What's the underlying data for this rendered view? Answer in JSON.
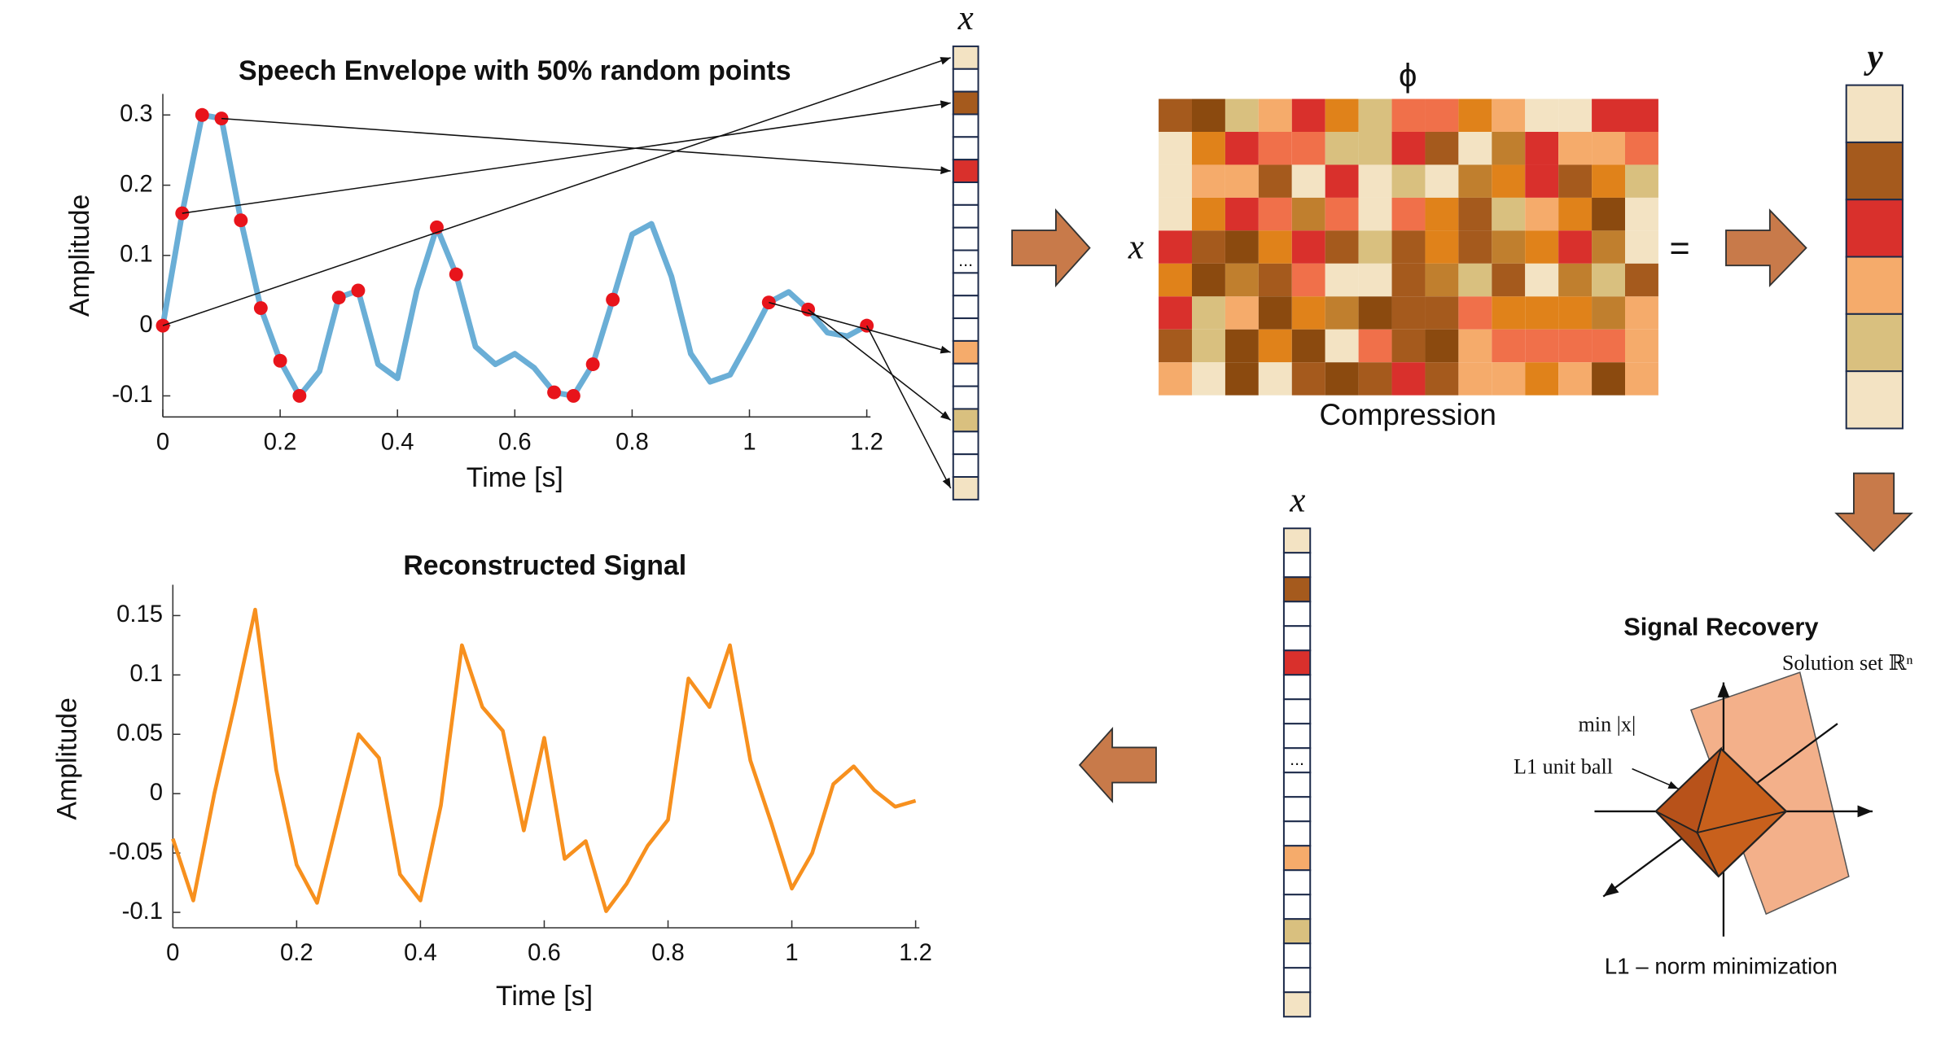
{
  "chart_data": [
    {
      "type": "line",
      "title": "Speech Envelope with 50% random points",
      "x_label": "Time [s]",
      "y_label": "Amplitude",
      "x": [
        0,
        0.033,
        0.067,
        0.1,
        0.133,
        0.167,
        0.2,
        0.233,
        0.267,
        0.3,
        0.333,
        0.367,
        0.4,
        0.433,
        0.467,
        0.5,
        0.533,
        0.567,
        0.6,
        0.633,
        0.667,
        0.7,
        0.733,
        0.767,
        0.8,
        0.833,
        0.867,
        0.9,
        0.933,
        0.967,
        1.0,
        1.033,
        1.067,
        1.1,
        1.133,
        1.167,
        1.2
      ],
      "series": [
        {
          "color": "#6aaed6",
          "values": [
            0,
            0.16,
            0.3,
            0.295,
            0.15,
            0.025,
            -0.05,
            -0.1,
            -0.065,
            0.04,
            0.05,
            -0.055,
            -0.075,
            0.05,
            0.14,
            0.073,
            -0.03,
            -0.055,
            -0.04,
            -0.06,
            -0.095,
            -0.1,
            -0.055,
            0.037,
            0.13,
            0.145,
            0.07,
            -0.04,
            -0.08,
            -0.07,
            -0.02,
            0.033,
            0.048,
            0.023,
            -0.01,
            -0.015,
            0
          ]
        },
        {
          "type": "scatter",
          "color": "#e8141b",
          "x": [
            0,
            0.033,
            0.067,
            0.1,
            0.133,
            0.167,
            0.2,
            0.233,
            0.3,
            0.333,
            0.467,
            0.5,
            0.667,
            0.7,
            0.733,
            0.767,
            1.033,
            1.1,
            1.2
          ],
          "values": [
            0,
            0.16,
            0.3,
            0.295,
            0.15,
            0.025,
            -0.05,
            -0.1,
            0.04,
            0.05,
            0.14,
            0.073,
            -0.095,
            -0.1,
            -0.055,
            0.037,
            0.033,
            0.023,
            0
          ]
        }
      ],
      "xlim": [
        0,
        1.2
      ],
      "ylim": [
        -0.13,
        0.33
      ],
      "xticks": [
        0,
        0.2,
        0.4,
        0.6,
        0.8,
        1,
        1.2
      ],
      "yticks": [
        -0.1,
        0,
        0.1,
        0.2,
        0.3
      ]
    },
    {
      "type": "line",
      "title": "Reconstructed Signal",
      "x_label": "Time [s]",
      "y_label": "Amplitude",
      "x": [
        0,
        0.033,
        0.067,
        0.1,
        0.133,
        0.167,
        0.2,
        0.233,
        0.267,
        0.3,
        0.333,
        0.367,
        0.4,
        0.433,
        0.467,
        0.5,
        0.533,
        0.567,
        0.6,
        0.633,
        0.667,
        0.7,
        0.733,
        0.767,
        0.8,
        0.833,
        0.867,
        0.9,
        0.933,
        0.967,
        1.0,
        1.033,
        1.067,
        1.1,
        1.133,
        1.167,
        1.2
      ],
      "series": [
        {
          "color": "#f7901e",
          "values": [
            -0.038,
            -0.09,
            0,
            0.075,
            0.155,
            0.02,
            -0.06,
            -0.092,
            -0.02,
            0.05,
            0.03,
            -0.068,
            -0.09,
            -0.01,
            0.125,
            0.073,
            0.053,
            -0.031,
            0.047,
            -0.055,
            -0.04,
            -0.099,
            -0.076,
            -0.044,
            -0.022,
            0.097,
            0.073,
            0.125,
            0.028,
            -0.025,
            -0.08,
            -0.05,
            0.008,
            0.023,
            0.003,
            -0.011,
            -0.006
          ]
        }
      ],
      "xlim": [
        0,
        1.2
      ],
      "ylim": [
        -0.113,
        0.176
      ],
      "xticks": [
        0,
        0.2,
        0.4,
        0.6,
        0.8,
        1,
        1.2
      ],
      "yticks": [
        -0.1,
        -0.05,
        0,
        0.05,
        0.1,
        0.15
      ]
    }
  ],
  "diagram": {
    "x_top": {
      "label": "x",
      "ellipsis": "...",
      "cells": [
        "#f3e3c3",
        "#ffffff",
        "#a55a1d",
        "#ffffff",
        "#ffffff",
        "#d9302c",
        "#ffffff",
        "#ffffff",
        "#ffffff",
        "#ffffff",
        "#ffffff",
        "#ffffff",
        "#ffffff",
        "#f5ab6b",
        "#ffffff",
        "#ffffff",
        "#d9c07f",
        "#ffffff",
        "#ffffff",
        "#f3e3c3"
      ]
    },
    "phi": "ϕ",
    "compression": "Compression",
    "x_left": "x",
    "equals": "=",
    "y": {
      "label": "y",
      "cells": [
        "#f3e3c3",
        "#a55a1d",
        "#d9302c",
        "#f5ab6b",
        "#d9c07f",
        "#f3e3c3"
      ]
    },
    "x_bottom": {
      "label": "x",
      "ellipsis": "...",
      "cells": [
        "#f3e3c3",
        "#ffffff",
        "#a55a1d",
        "#ffffff",
        "#ffffff",
        "#d9302c",
        "#ffffff",
        "#ffffff",
        "#ffffff",
        "#ffffff",
        "#ffffff",
        "#ffffff",
        "#ffffff",
        "#f5ab6b",
        "#ffffff",
        "#ffffff",
        "#d9c07f",
        "#ffffff",
        "#ffffff",
        "#f3e3c3"
      ]
    },
    "matrix": [
      [
        "#a55a1d",
        "#8b4a0f",
        "#d9c07f",
        "#f5ab6b",
        "#d9302c",
        "#e0821a",
        "#d9c07f",
        "#f0704a",
        "#f0704a",
        "#e0821a",
        "#f5ab6b",
        "#f3e3c3",
        "#f3e3c3",
        "#d9302c",
        "#d9302c"
      ],
      [
        "#f3e3c3",
        "#e0821a",
        "#d9302c",
        "#f0704a",
        "#f0704a",
        "#d9c07f",
        "#d9c07f",
        "#d9302c",
        "#a55a1d",
        "#f3e3c3",
        "#c07f2e",
        "#d9302c",
        "#f5ab6b",
        "#f5ab6b",
        "#f0704a"
      ],
      [
        "#f3e3c3",
        "#f5ab6b",
        "#f5ab6b",
        "#a55a1d",
        "#f3e3c3",
        "#d9302c",
        "#f3e3c3",
        "#d9c07f",
        "#f3e3c3",
        "#c07f2e",
        "#e0821a",
        "#d9302c",
        "#a55a1d",
        "#e0821a",
        "#d9c07f"
      ],
      [
        "#f3e3c3",
        "#e0821a",
        "#d9302c",
        "#f0704a",
        "#c07f2e",
        "#f0704a",
        "#f3e3c3",
        "#f0704a",
        "#e0821a",
        "#a55a1d",
        "#d9c07f",
        "#f5ab6b",
        "#e0821a",
        "#8b4a0f",
        "#f3e3c3"
      ],
      [
        "#d9302c",
        "#a55a1d",
        "#8b4a0f",
        "#e0821a",
        "#d9302c",
        "#a55a1d",
        "#d9c07f",
        "#a55a1d",
        "#e0821a",
        "#a55a1d",
        "#c07f2e",
        "#e0821a",
        "#d9302c",
        "#c07f2e",
        "#f3e3c3"
      ],
      [
        "#e0821a",
        "#8b4a0f",
        "#c07f2e",
        "#a55a1d",
        "#f0704a",
        "#f3e3c3",
        "#f3e3c3",
        "#a55a1d",
        "#c07f2e",
        "#d9c07f",
        "#a55a1d",
        "#f3e3c3",
        "#c07f2e",
        "#d9c07f",
        "#a55a1d"
      ],
      [
        "#d9302c",
        "#d9c07f",
        "#f5ab6b",
        "#8b4a0f",
        "#e0821a",
        "#c07f2e",
        "#8b4a0f",
        "#a55a1d",
        "#a55a1d",
        "#f0704a",
        "#e0821a",
        "#e0821a",
        "#e0821a",
        "#c07f2e",
        "#f5ab6b"
      ],
      [
        "#a55a1d",
        "#d9c07f",
        "#8b4a0f",
        "#e0821a",
        "#8b4a0f",
        "#f3e3c3",
        "#f0704a",
        "#a55a1d",
        "#8b4a0f",
        "#f5ab6b",
        "#f0704a",
        "#f0704a",
        "#f0704a",
        "#f0704a",
        "#f5ab6b"
      ],
      [
        "#f5ab6b",
        "#f3e3c3",
        "#8b4a0f",
        "#f3e3c3",
        "#a55a1d",
        "#8b4a0f",
        "#a55a1d",
        "#d9302c",
        "#a55a1d",
        "#f5ab6b",
        "#f5ab6b",
        "#e0821a",
        "#f5ab6b",
        "#8b4a0f",
        "#f5ab6b"
      ]
    ],
    "recovery": {
      "title": "Signal Recovery",
      "solution_set": "Solution set ℝⁿ",
      "min": "min |x|",
      "ball": "L1 unit ball",
      "caption": "L1 – norm minimization"
    }
  }
}
